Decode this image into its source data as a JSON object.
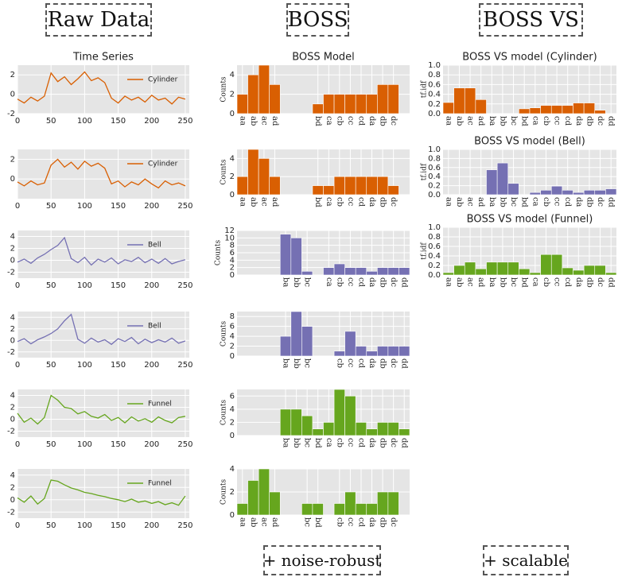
{
  "headers": [
    "Raw Data",
    "BOSS",
    "BOSS VS"
  ],
  "footers": [
    "+ noise-robust",
    "+ scalable"
  ],
  "chart_data": [
    {
      "type": "line",
      "title": "Time Series",
      "x": [
        0,
        10,
        20,
        30,
        40,
        50,
        60,
        70,
        80,
        90,
        100,
        110,
        120,
        130,
        140,
        150,
        160,
        170,
        180,
        190,
        200,
        210,
        220,
        230,
        240,
        250
      ],
      "series": [
        {
          "name": "Cylinder",
          "color": "#d95f02",
          "values": [
            -0.5,
            -0.9,
            -0.3,
            -0.7,
            -0.2,
            2.2,
            1.3,
            1.8,
            1.0,
            1.6,
            2.3,
            1.4,
            1.7,
            1.2,
            -0.4,
            -0.9,
            -0.2,
            -0.6,
            -0.3,
            -0.8,
            -0.1,
            -0.6,
            -0.4,
            -1.0,
            -0.3,
            -0.5
          ]
        }
      ],
      "xlim": [
        0,
        256
      ],
      "ylim": [
        -2,
        3
      ],
      "xticks": [
        0,
        50,
        100,
        150,
        200,
        250
      ],
      "yticks": [
        -2,
        0,
        2
      ],
      "grid": true,
      "legend": "upper right"
    },
    {
      "type": "line",
      "x": [
        0,
        10,
        20,
        30,
        40,
        50,
        60,
        70,
        80,
        90,
        100,
        110,
        120,
        130,
        140,
        150,
        160,
        170,
        180,
        190,
        200,
        210,
        220,
        230,
        240,
        250
      ],
      "series": [
        {
          "name": "Cylinder",
          "color": "#d95f02",
          "values": [
            -0.3,
            -0.7,
            -0.2,
            -0.6,
            -0.4,
            1.4,
            2.0,
            1.2,
            1.7,
            1.0,
            1.8,
            1.3,
            1.6,
            1.1,
            -0.5,
            -0.2,
            -0.8,
            -0.3,
            -0.6,
            0.0,
            -0.5,
            -0.9,
            -0.2,
            -0.6,
            -0.4,
            -0.7
          ]
        }
      ],
      "xlim": [
        0,
        256
      ],
      "ylim": [
        -2,
        3
      ],
      "xticks": [
        0,
        50,
        100,
        150,
        200,
        250
      ],
      "yticks": [
        0,
        2
      ],
      "grid": true,
      "legend": "upper right"
    },
    {
      "type": "line",
      "x": [
        0,
        10,
        20,
        30,
        40,
        50,
        60,
        70,
        80,
        90,
        100,
        110,
        120,
        130,
        140,
        150,
        160,
        170,
        180,
        190,
        200,
        210,
        220,
        230,
        240,
        250
      ],
      "series": [
        {
          "name": "Bell",
          "color": "#7570b3",
          "values": [
            -0.3,
            0.2,
            -0.5,
            0.4,
            1.0,
            1.8,
            2.5,
            3.8,
            0.3,
            -0.4,
            0.5,
            -0.8,
            0.2,
            -0.3,
            0.4,
            -0.6,
            0.1,
            -0.2,
            0.5,
            -0.4,
            0.2,
            -0.5,
            0.3,
            -0.6,
            -0.2,
            0.1
          ]
        }
      ],
      "xlim": [
        0,
        256
      ],
      "ylim": [
        -3,
        5
      ],
      "xticks": [
        0,
        50,
        100,
        150,
        200,
        250
      ],
      "yticks": [
        -2,
        0,
        2,
        4
      ],
      "grid": true,
      "legend": "upper right"
    },
    {
      "type": "line",
      "x": [
        0,
        10,
        20,
        30,
        40,
        50,
        60,
        70,
        80,
        90,
        100,
        110,
        120,
        130,
        140,
        150,
        160,
        170,
        180,
        190,
        200,
        210,
        220,
        230,
        240,
        250
      ],
      "series": [
        {
          "name": "Bell",
          "color": "#7570b3",
          "values": [
            -0.2,
            0.3,
            -0.6,
            0.1,
            0.6,
            1.2,
            2.0,
            3.4,
            4.5,
            0.2,
            -0.5,
            0.4,
            -0.3,
            0.1,
            -0.7,
            0.3,
            -0.2,
            0.5,
            -0.6,
            0.2,
            -0.4,
            0.1,
            -0.3,
            0.4,
            -0.5,
            -0.1
          ]
        }
      ],
      "xlim": [
        0,
        256
      ],
      "ylim": [
        -3,
        5
      ],
      "xticks": [
        0,
        50,
        100,
        150,
        200,
        250
      ],
      "yticks": [
        -2,
        0,
        2,
        4
      ],
      "grid": true,
      "legend": "upper right"
    },
    {
      "type": "line",
      "x": [
        0,
        10,
        20,
        30,
        40,
        50,
        60,
        70,
        80,
        90,
        100,
        110,
        120,
        130,
        140,
        150,
        160,
        170,
        180,
        190,
        200,
        210,
        220,
        230,
        240,
        250
      ],
      "series": [
        {
          "name": "Funnel",
          "color": "#66a61e",
          "values": [
            1.0,
            -0.5,
            0.2,
            -0.8,
            0.3,
            4.0,
            3.2,
            2.0,
            1.8,
            0.9,
            1.3,
            0.5,
            0.2,
            0.8,
            -0.2,
            0.3,
            -0.6,
            0.4,
            -0.3,
            0.1,
            -0.5,
            0.4,
            -0.2,
            -0.6,
            0.3,
            0.5
          ]
        }
      ],
      "xlim": [
        0,
        256
      ],
      "ylim": [
        -3,
        5
      ],
      "xticks": [
        0,
        50,
        100,
        150,
        200,
        250
      ],
      "yticks": [
        -2,
        0,
        2,
        4
      ],
      "grid": true,
      "legend": "upper right"
    },
    {
      "type": "line",
      "x": [
        0,
        10,
        20,
        30,
        40,
        50,
        60,
        70,
        80,
        90,
        100,
        110,
        120,
        130,
        140,
        150,
        160,
        170,
        180,
        190,
        200,
        210,
        220,
        230,
        240,
        250
      ],
      "series": [
        {
          "name": "Funnel",
          "color": "#66a61e",
          "values": [
            0.3,
            -0.4,
            0.6,
            -0.7,
            0.2,
            3.2,
            3.0,
            2.4,
            1.9,
            1.6,
            1.2,
            1.0,
            0.7,
            0.5,
            0.2,
            0.0,
            -0.3,
            0.1,
            -0.4,
            -0.2,
            -0.6,
            -0.3,
            -0.8,
            -0.5,
            -0.9,
            0.6
          ]
        }
      ],
      "xlim": [
        0,
        256
      ],
      "ylim": [
        -3,
        5
      ],
      "xticks": [
        0,
        50,
        100,
        150,
        200,
        250
      ],
      "yticks": [
        -2,
        0,
        2,
        4
      ],
      "grid": true,
      "legend": "upper right"
    },
    {
      "type": "bar",
      "title": "BOSS Model",
      "ylabel": "Counts",
      "color": "#d95f02",
      "categories": [
        "aa",
        "ab",
        "ac",
        "ad",
        null,
        null,
        null,
        "bd",
        "ca",
        "cb",
        "cc",
        "cd",
        "da",
        "db",
        "dc",
        null
      ],
      "values": [
        2,
        4,
        5,
        3,
        null,
        null,
        null,
        1,
        2,
        2,
        2,
        2,
        2,
        3,
        3,
        null
      ],
      "ylim": [
        0,
        5
      ],
      "yticks": [
        0,
        2,
        4
      ],
      "grid": true
    },
    {
      "type": "bar",
      "ylabel": "Counts",
      "color": "#d95f02",
      "categories": [
        "aa",
        "ab",
        "ac",
        "ad",
        null,
        null,
        null,
        "bd",
        "ca",
        "cb",
        "cc",
        "cd",
        "da",
        "db",
        "dc",
        null
      ],
      "values": [
        2,
        5,
        4,
        2,
        null,
        null,
        null,
        1,
        1,
        2,
        2,
        2,
        2,
        2,
        1,
        null
      ],
      "ylim": [
        0,
        5
      ],
      "yticks": [
        0,
        2,
        4
      ],
      "grid": true
    },
    {
      "type": "bar",
      "ylabel": "Counts",
      "color": "#7570b3",
      "categories": [
        null,
        null,
        null,
        null,
        "ba",
        "bb",
        "bc",
        null,
        "ca",
        "cb",
        "cc",
        "cd",
        "da",
        "db",
        "dc",
        "dd"
      ],
      "values": [
        null,
        null,
        null,
        null,
        11,
        10,
        1,
        null,
        2,
        3,
        2,
        2,
        1,
        2,
        2,
        2
      ],
      "ylim": [
        0,
        12
      ],
      "yticks": [
        0,
        2,
        4,
        6,
        8,
        10,
        12
      ],
      "grid": true
    },
    {
      "type": "bar",
      "ylabel": "Counts",
      "color": "#7570b3",
      "categories": [
        null,
        null,
        null,
        null,
        "ba",
        "bb",
        "bc",
        null,
        null,
        "cb",
        "cc",
        "cd",
        "da",
        "db",
        "dc",
        "dd"
      ],
      "values": [
        null,
        null,
        null,
        null,
        4,
        9,
        6,
        null,
        null,
        1,
        5,
        2,
        1,
        2,
        2,
        2
      ],
      "ylim": [
        0,
        9
      ],
      "yticks": [
        0,
        2,
        4,
        6,
        8
      ],
      "grid": true
    },
    {
      "type": "bar",
      "ylabel": "Counts",
      "color": "#66a61e",
      "categories": [
        null,
        null,
        null,
        null,
        "ba",
        "bb",
        "bc",
        "bd",
        "ca",
        "cb",
        "cc",
        "cd",
        "da",
        "db",
        "dc",
        "dd"
      ],
      "values": [
        null,
        null,
        null,
        null,
        4,
        4,
        3,
        1,
        2,
        7,
        6,
        2,
        1,
        2,
        2,
        1
      ],
      "ylim": [
        0,
        7
      ],
      "yticks": [
        0,
        2,
        4,
        6
      ],
      "grid": true
    },
    {
      "type": "bar",
      "ylabel": "Counts",
      "color": "#66a61e",
      "categories": [
        "aa",
        "ab",
        "ac",
        "ad",
        null,
        null,
        "bc",
        "bd",
        null,
        "cb",
        "cc",
        "cd",
        "da",
        "db",
        "dc",
        null
      ],
      "values": [
        1,
        3,
        4,
        2,
        null,
        null,
        1,
        1,
        null,
        1,
        2,
        1,
        1,
        2,
        2,
        null
      ],
      "ylim": [
        0,
        4
      ],
      "yticks": [
        0,
        2,
        4
      ],
      "grid": true
    },
    {
      "type": "bar",
      "title": "BOSS VS model (Cylinder)",
      "ylabel": "tf.idf",
      "color": "#d95f02",
      "categories": [
        "aa",
        "ab",
        "ac",
        "ad",
        "ba",
        "bb",
        "bc",
        "bd",
        "ca",
        "cb",
        "cc",
        "cd",
        "da",
        "db",
        "dc",
        "dd"
      ],
      "values": [
        0.23,
        0.53,
        0.53,
        0.29,
        0,
        0,
        0,
        0.1,
        0.12,
        0.17,
        0.17,
        0.17,
        0.22,
        0.22,
        0.07,
        0
      ],
      "ylim": [
        0,
        1
      ],
      "yticks": [
        {
          "value": 0,
          "label": "0.0"
        },
        {
          "value": 0.2,
          "label": "0.2"
        },
        {
          "value": 0.4,
          "label": "0.4"
        },
        {
          "value": 0.6,
          "label": "0.6"
        },
        {
          "value": 0.8,
          "label": "0.8"
        },
        {
          "value": 1,
          "label": "1.0"
        }
      ],
      "grid": true
    },
    {
      "type": "bar",
      "title": "BOSS VS model (Bell)",
      "ylabel": "tf.idf",
      "color": "#7570b3",
      "categories": [
        "aa",
        "ab",
        "ac",
        "ad",
        "ba",
        "bb",
        "bc",
        "bd",
        "ca",
        "cb",
        "cc",
        "cd",
        "da",
        "db",
        "dc",
        "dd"
      ],
      "values": [
        0,
        0,
        0,
        0,
        0.55,
        0.7,
        0.25,
        0,
        0.05,
        0.1,
        0.19,
        0.1,
        0.05,
        0.1,
        0.1,
        0.13
      ],
      "ylim": [
        0,
        1
      ],
      "yticks": [
        {
          "value": 0,
          "label": "0.0"
        },
        {
          "value": 0.2,
          "label": "0.2"
        },
        {
          "value": 0.4,
          "label": "0.4"
        },
        {
          "value": 0.6,
          "label": "0.6"
        },
        {
          "value": 0.8,
          "label": "0.8"
        },
        {
          "value": 1,
          "label": "1.0"
        }
      ],
      "grid": true
    },
    {
      "type": "bar",
      "title": "BOSS VS model (Funnel)",
      "ylabel": "tf.idf",
      "color": "#66a61e",
      "categories": [
        "aa",
        "ab",
        "ac",
        "ad",
        "ba",
        "bb",
        "bc",
        "bd",
        "ca",
        "cb",
        "cc",
        "cd",
        "da",
        "db",
        "dc",
        "dd"
      ],
      "values": [
        0.05,
        0.2,
        0.27,
        0.13,
        0.27,
        0.27,
        0.27,
        0.13,
        0.05,
        0.43,
        0.43,
        0.15,
        0.1,
        0.2,
        0.2,
        0.05
      ],
      "ylim": [
        0,
        1
      ],
      "yticks": [
        {
          "value": 0,
          "label": "0.0"
        },
        {
          "value": 0.2,
          "label": "0.2"
        },
        {
          "value": 0.4,
          "label": "0.4"
        },
        {
          "value": 0.6,
          "label": "0.6"
        },
        {
          "value": 0.8,
          "label": "0.8"
        },
        {
          "value": 1,
          "label": "1.0"
        }
      ],
      "grid": true
    }
  ]
}
